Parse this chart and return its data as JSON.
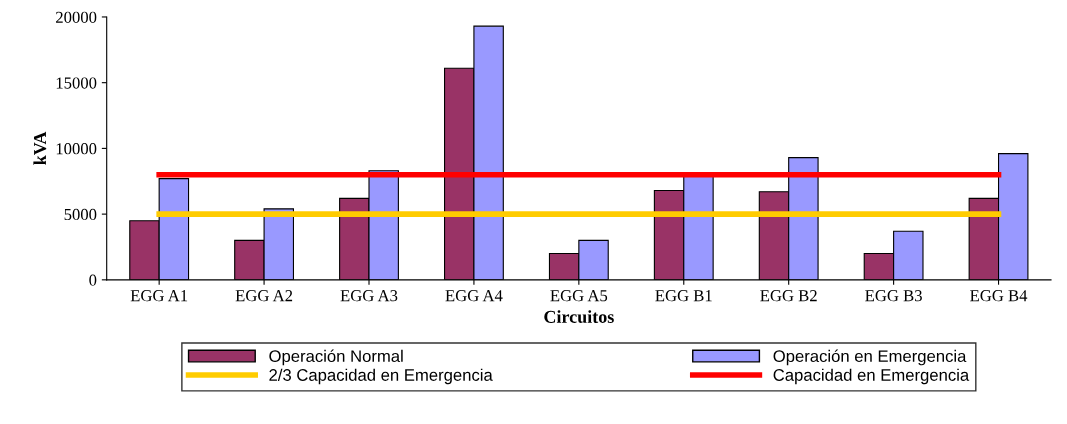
{
  "chart_data": {
    "type": "bar",
    "xlabel": "Circuitos",
    "ylabel": "kVA",
    "categories": [
      "EGG A1",
      "EGG A2",
      "EGG A3",
      "EGG A4",
      "EGG A5",
      "EGG B1",
      "EGG B2",
      "EGG B3",
      "EGG B4"
    ],
    "series": [
      {
        "name": "Operación Normal",
        "color": "#993366",
        "values": [
          4500,
          3000,
          6200,
          16100,
          2000,
          6800,
          6700,
          2000,
          6200
        ]
      },
      {
        "name": "Operación en Emergencia",
        "color": "#9999ff",
        "values": [
          7700,
          5400,
          8300,
          19300,
          3000,
          8000,
          9300,
          3700,
          9600
        ]
      },
      {
        "name": "2/3 Capacidad en Emergencia",
        "type": "line",
        "color": "#ffcc00",
        "values": [
          5000,
          5000,
          5000,
          5000,
          5000,
          5000,
          5000,
          5000,
          5000
        ]
      },
      {
        "name": "Capacidad en Emergencia",
        "type": "line",
        "color": "#ff0000",
        "values": [
          8000,
          8000,
          8000,
          8000,
          8000,
          8000,
          8000,
          8000,
          8000
        ]
      }
    ],
    "ylim": [
      0,
      20000
    ],
    "yticks": [
      0,
      5000,
      10000,
      15000,
      20000
    ],
    "grid": false,
    "legend": "bottom",
    "marker": "none",
    "line_style": "solid"
  }
}
